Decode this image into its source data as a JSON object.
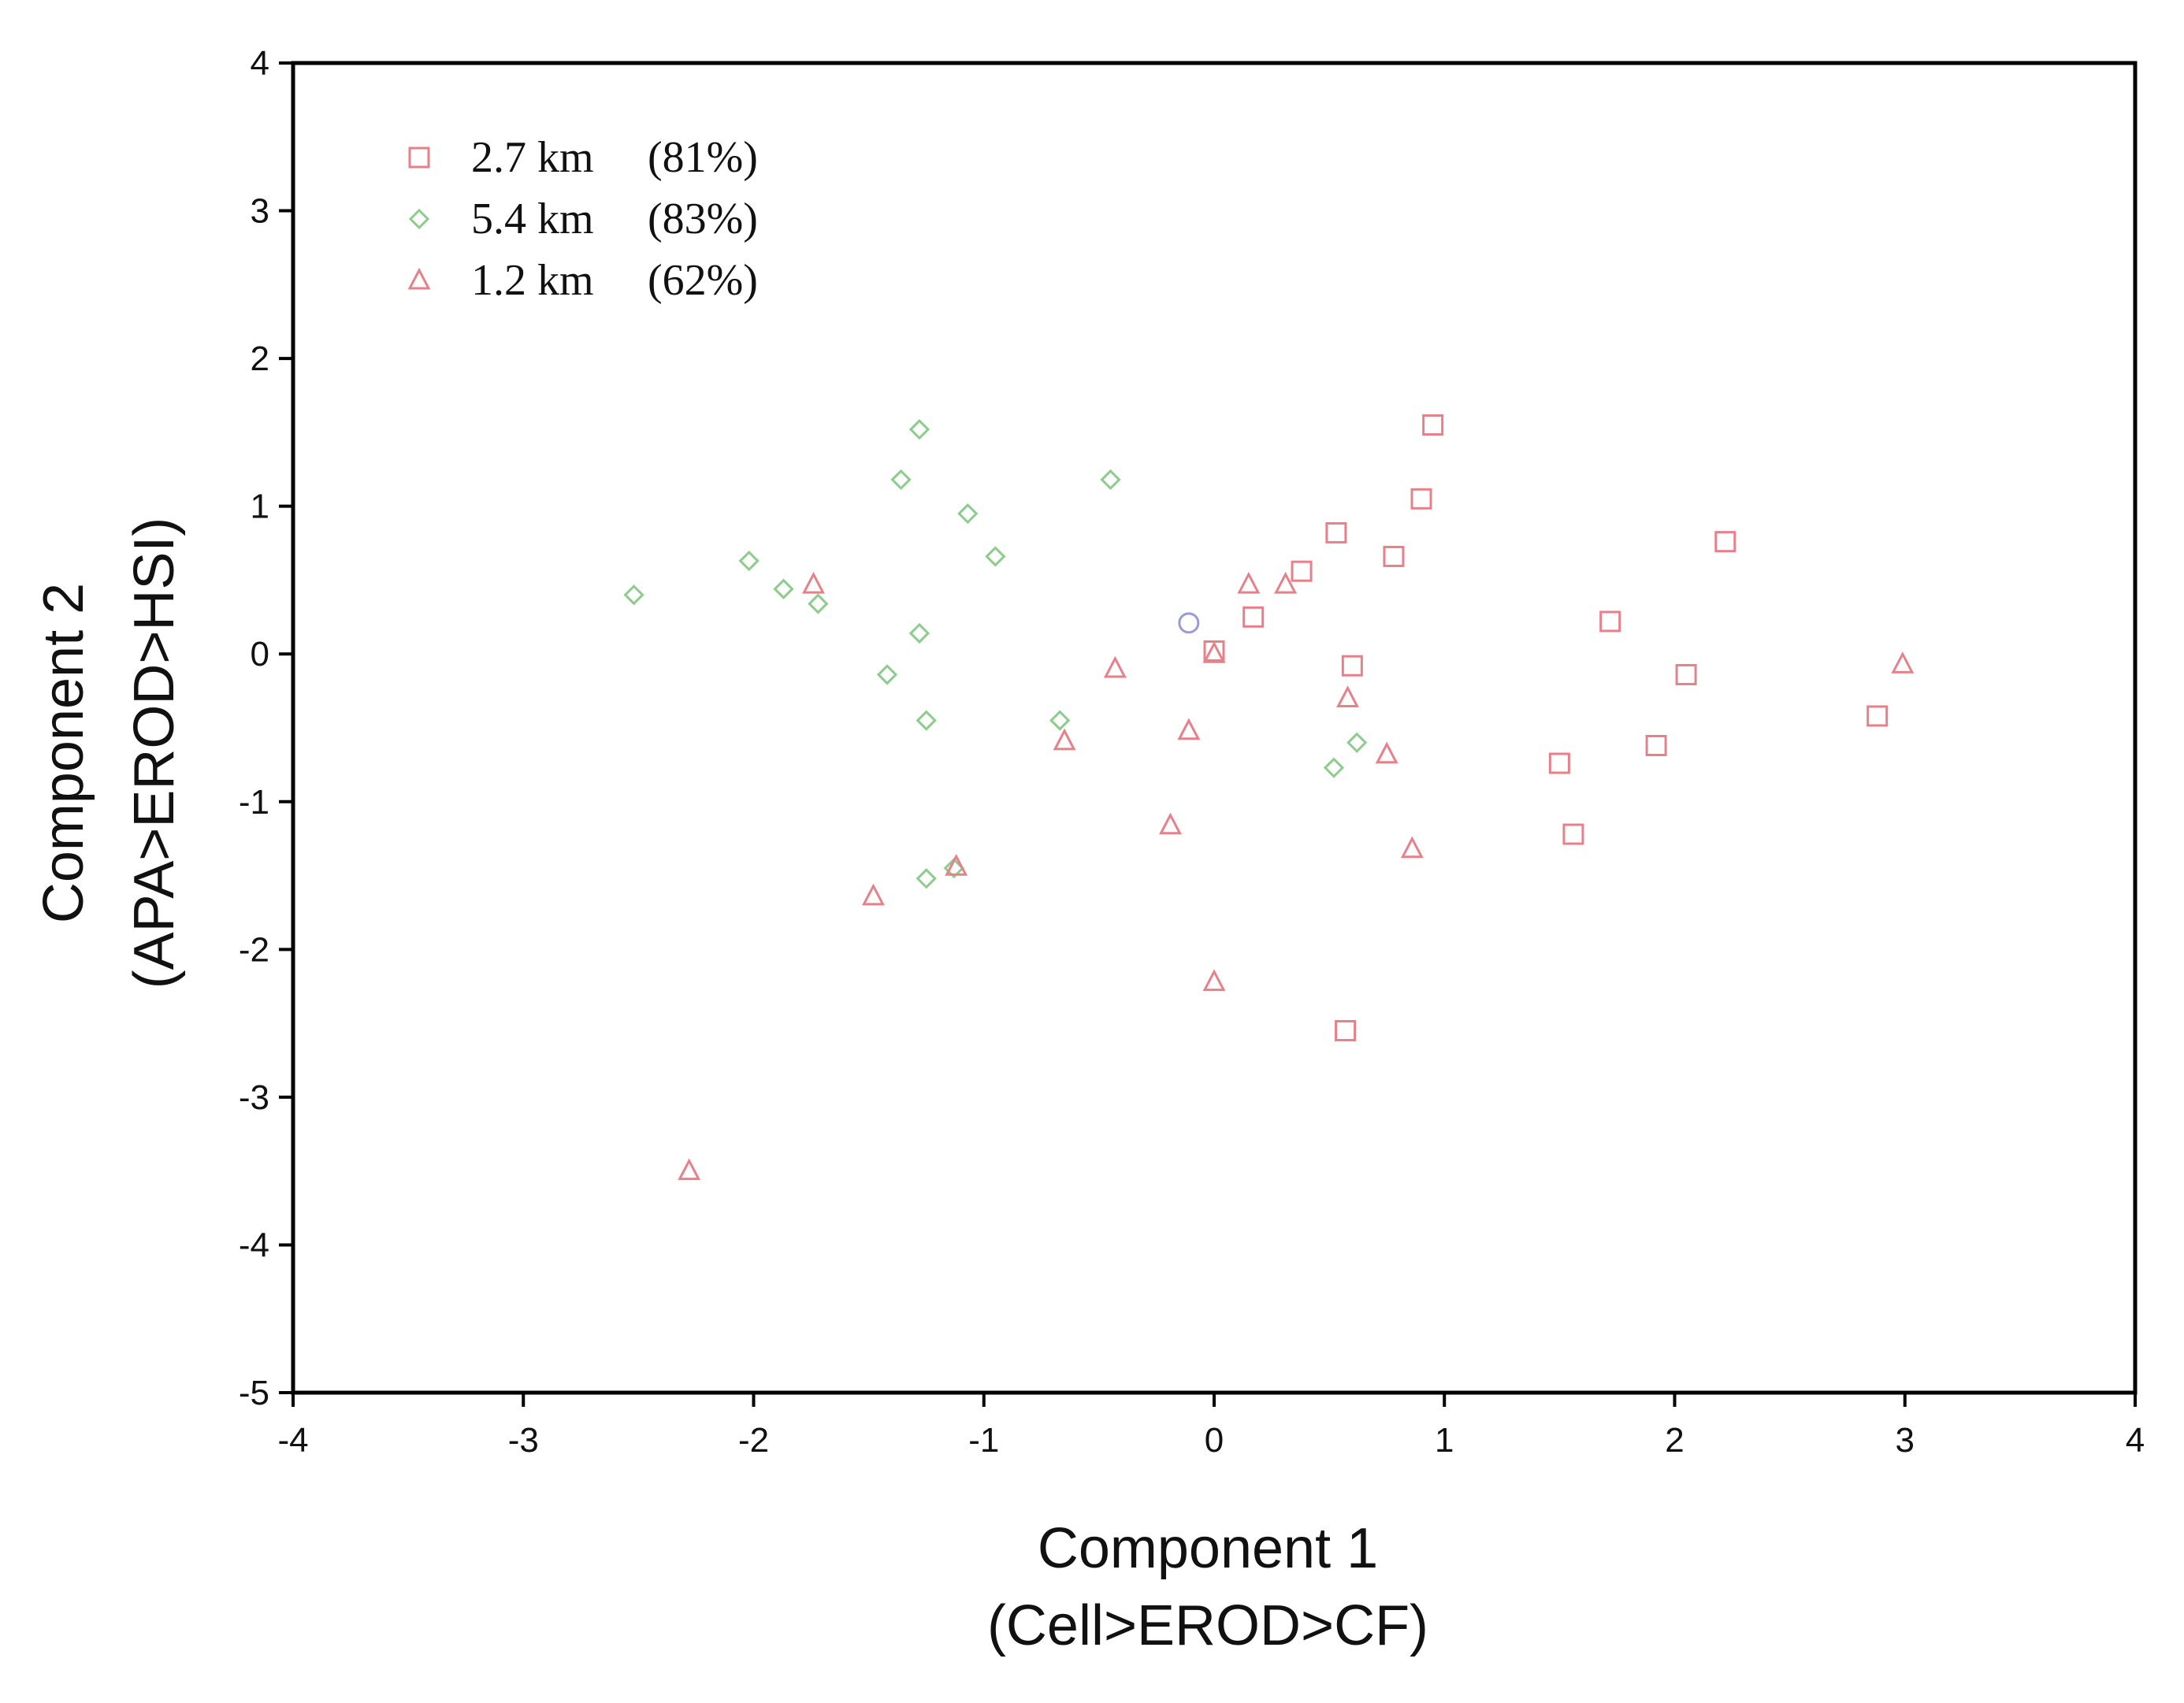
{
  "chart_data": {
    "type": "scatter",
    "title": "",
    "xlabel": "Component 1",
    "xlabel_sub": "(Cell>EROD>CF)",
    "ylabel": "Component 2",
    "ylabel_sub": "(APA>EROD>HSI)",
    "xlim": [
      -4,
      4
    ],
    "ylim": [
      -5,
      4
    ],
    "x_ticks": [
      "-4",
      "-3",
      "-2",
      "-1",
      "0",
      "1",
      "2",
      "3",
      "4"
    ],
    "y_ticks": [
      "4",
      "3",
      "2",
      "1",
      "0",
      "-1",
      "-2",
      "-3",
      "-4",
      "-5"
    ],
    "grid": false,
    "legend_position": "top-left",
    "series": [
      {
        "name": "2.7 km",
        "pct": "(81%)",
        "marker": "square",
        "color": "#e8808a",
        "points": [
          [
            0.95,
            1.55
          ],
          [
            0.9,
            1.05
          ],
          [
            0.53,
            0.82
          ],
          [
            0.78,
            0.66
          ],
          [
            2.22,
            0.76
          ],
          [
            0.38,
            0.56
          ],
          [
            0.17,
            0.25
          ],
          [
            1.72,
            0.22
          ],
          [
            0.0,
            0.02
          ],
          [
            0.6,
            -0.08
          ],
          [
            2.05,
            -0.14
          ],
          [
            2.88,
            -0.42
          ],
          [
            1.92,
            -0.62
          ],
          [
            1.5,
            -0.74
          ],
          [
            1.56,
            -1.22
          ],
          [
            0.57,
            -2.55
          ]
        ]
      },
      {
        "name": "5.4 km",
        "pct": "(83%)",
        "marker": "diamond",
        "color": "#8ccc8c",
        "points": [
          [
            -1.28,
            1.52
          ],
          [
            -1.36,
            1.18
          ],
          [
            -0.45,
            1.18
          ],
          [
            -1.07,
            0.95
          ],
          [
            -0.95,
            0.66
          ],
          [
            -2.02,
            0.63
          ],
          [
            -1.87,
            0.44
          ],
          [
            -2.52,
            0.4
          ],
          [
            -1.72,
            0.34
          ],
          [
            -1.28,
            0.14
          ],
          [
            -1.42,
            -0.14
          ],
          [
            -1.25,
            -0.45
          ],
          [
            -0.67,
            -0.45
          ],
          [
            0.62,
            -0.6
          ],
          [
            0.52,
            -0.77
          ],
          [
            -1.25,
            -1.52
          ],
          [
            -1.13,
            -1.45
          ]
        ]
      },
      {
        "name": "1.2 km",
        "pct": "(62%)",
        "marker": "triangle",
        "color": "#e8808a",
        "points": [
          [
            -1.74,
            0.47
          ],
          [
            0.15,
            0.47
          ],
          [
            0.31,
            0.47
          ],
          [
            -0.43,
            -0.1
          ],
          [
            0.0,
            0.0
          ],
          [
            0.58,
            -0.3
          ],
          [
            -0.11,
            -0.52
          ],
          [
            -0.65,
            -0.59
          ],
          [
            0.75,
            -0.68
          ],
          [
            2.99,
            -0.07
          ],
          [
            -0.19,
            -1.16
          ],
          [
            0.86,
            -1.32
          ],
          [
            -1.12,
            -1.44
          ],
          [
            -1.48,
            -1.64
          ],
          [
            0.0,
            -2.22
          ],
          [
            -2.28,
            -3.5
          ]
        ]
      }
    ],
    "extra_points": [
      {
        "marker": "circle",
        "color": "#9a9ad8",
        "points": [
          [
            -0.11,
            0.21
          ]
        ]
      }
    ]
  }
}
